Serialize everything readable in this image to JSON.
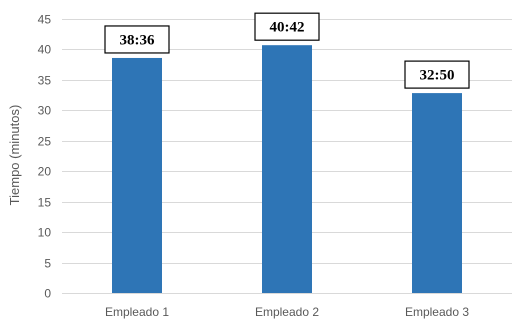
{
  "chart_data": {
    "type": "bar",
    "title": "",
    "xlabel": "",
    "ylabel": "Tiempo (minutos)",
    "categories": [
      "Empleado 1",
      "Empleado 2",
      "Empleado 3"
    ],
    "values": [
      38.6,
      40.7,
      32.83
    ],
    "data_labels": [
      "38:36",
      "40:42",
      "32:50"
    ],
    "ylim": [
      0,
      45
    ],
    "yticks": [
      0,
      5,
      10,
      15,
      20,
      25,
      30,
      35,
      40,
      45
    ],
    "grid": true,
    "legend": "none",
    "bar_color": "#2E75B6",
    "grid_color": "#D9D9D9"
  }
}
